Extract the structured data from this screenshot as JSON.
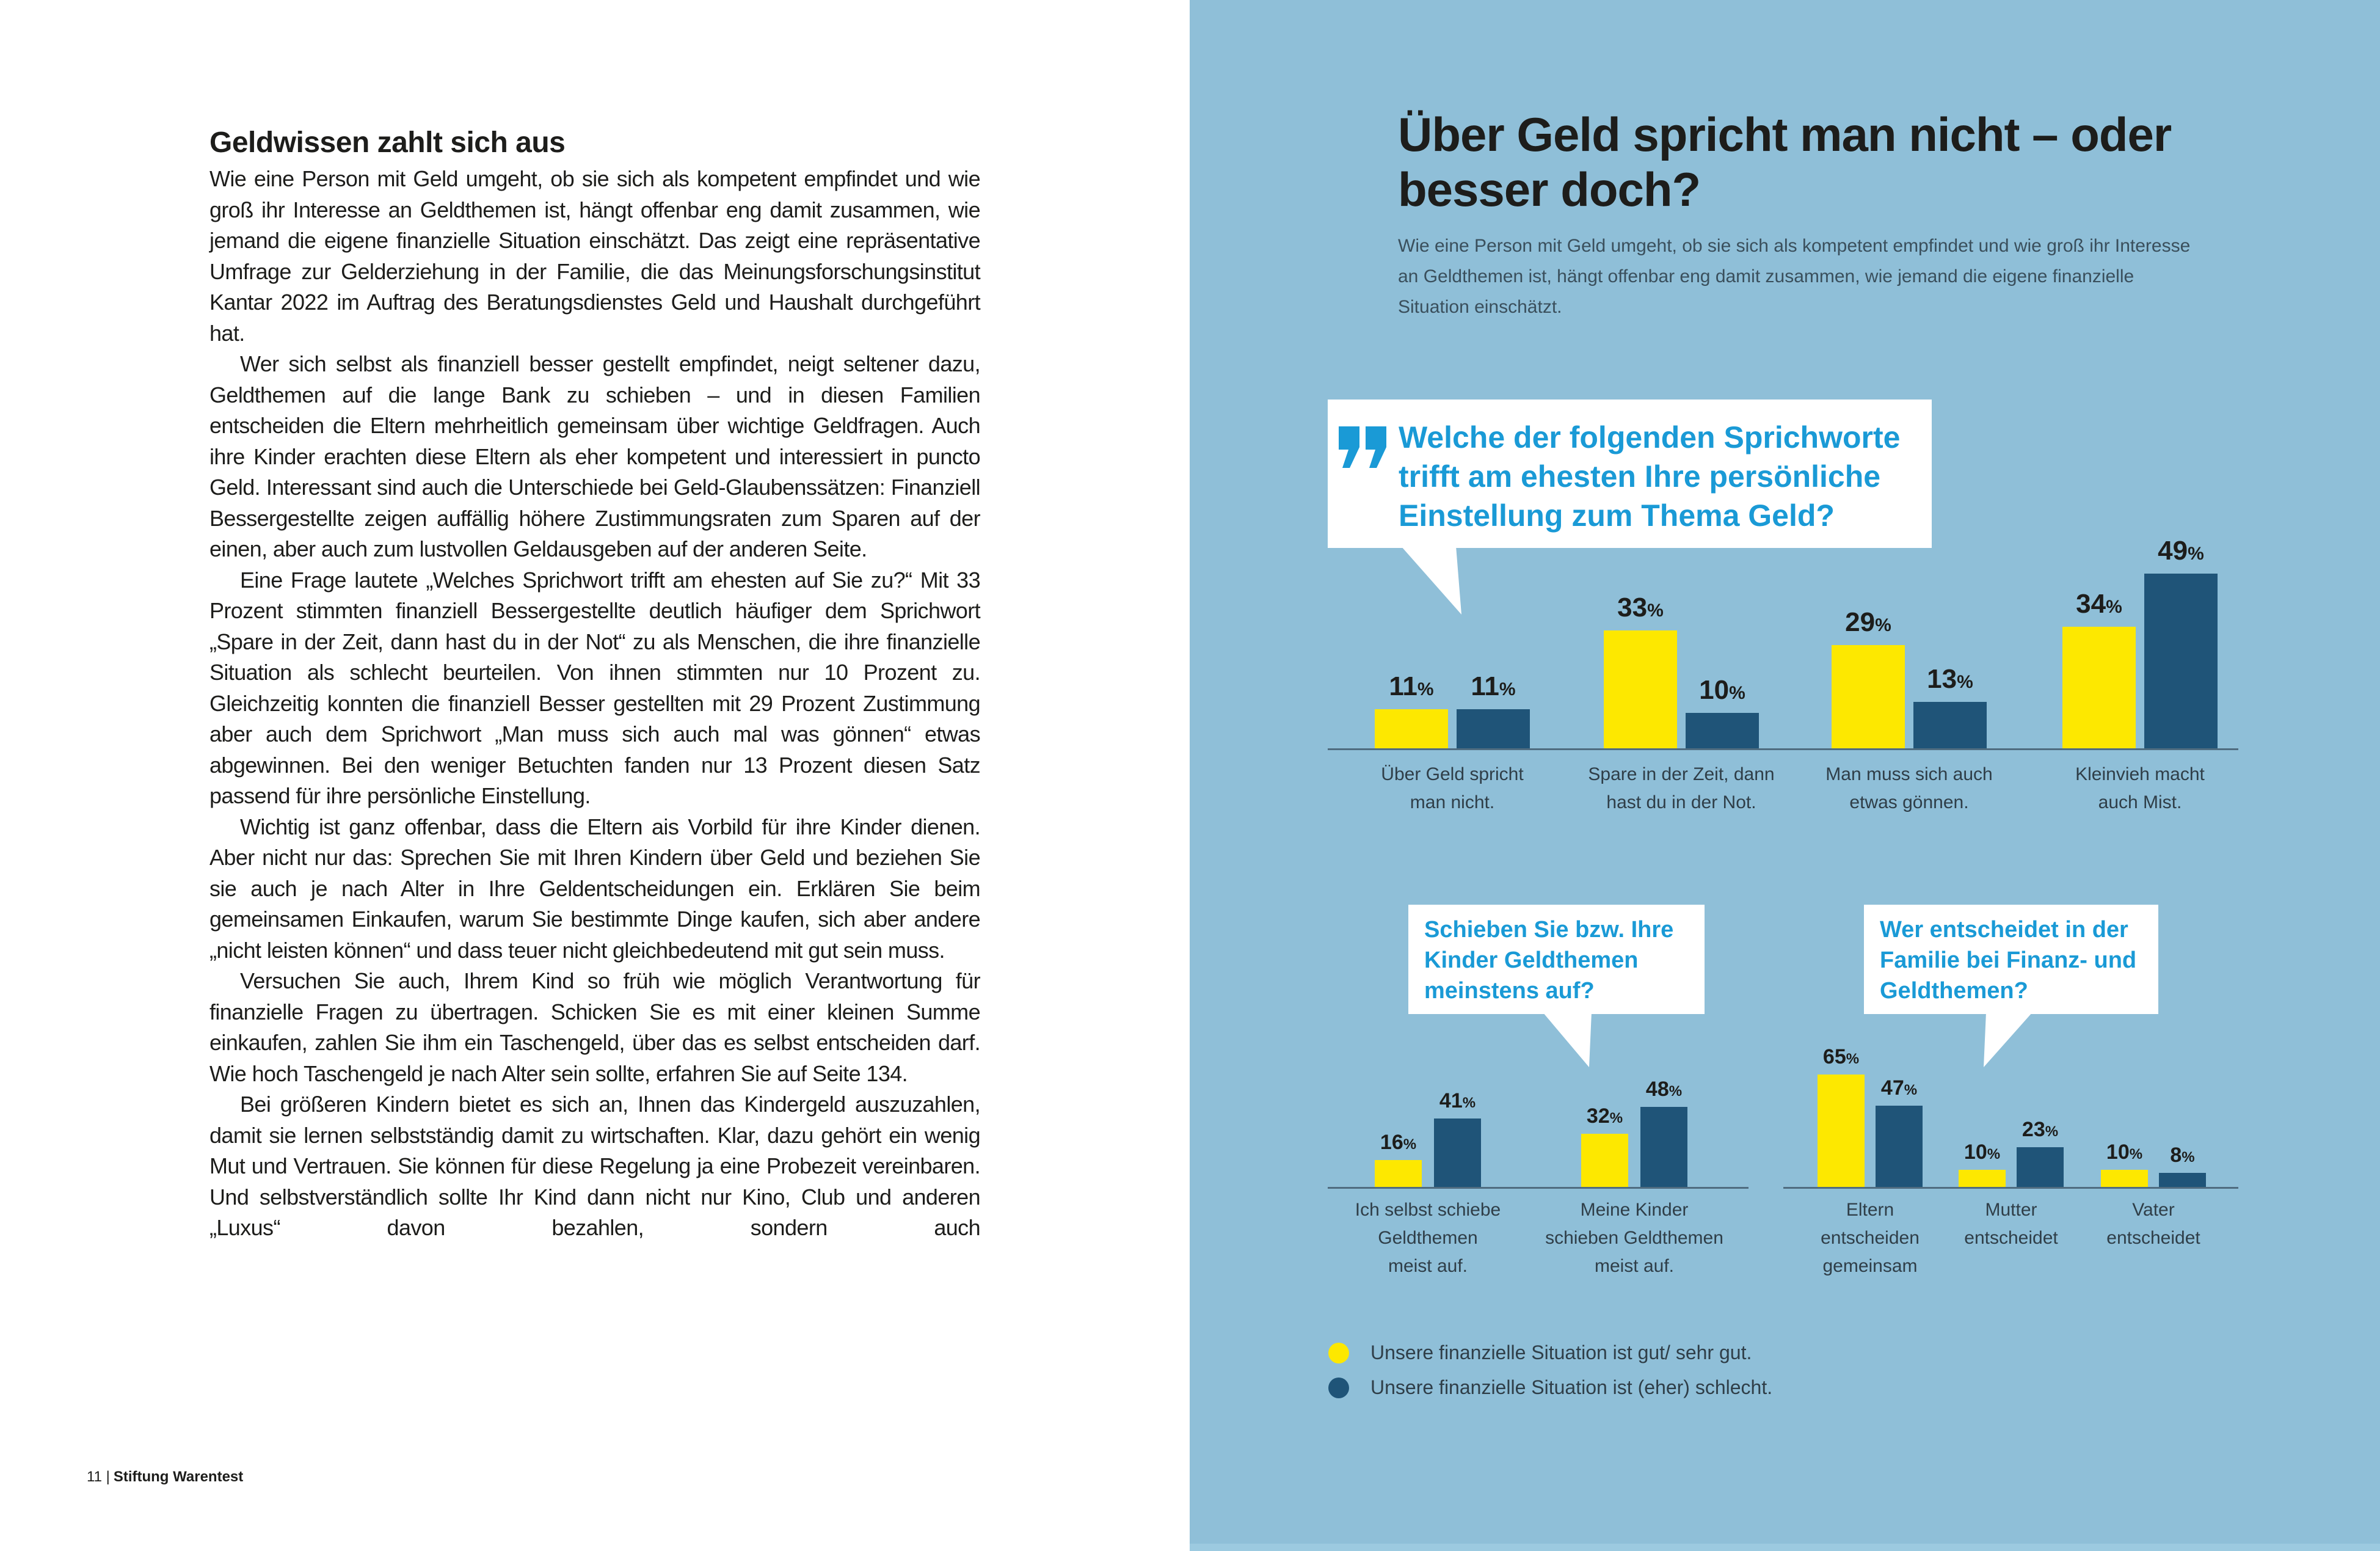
{
  "left": {
    "heading": "Geldwissen zahlt sich aus",
    "paragraphs": [
      "Wie eine Person mit Geld umgeht, ob sie sich als kompetent empfindet und wie groß ihr Interesse an Geldthemen ist, hängt offenbar eng damit zusammen, wie jemand die eigene finanzielle Situation einschätzt. Das zeigt eine repräsentative Umfrage zur Gelderziehung in der Familie, die das Meinungsforschungsinstitut Kantar 2022 im Auftrag des Beratungsdienstes Geld und Haushalt durchgeführt hat.",
      "Wer sich selbst als finanziell besser gestellt empfindet, neigt seltener dazu, Geldthemen auf die lange Bank zu schieben – und in diesen Familien entscheiden die Eltern mehrheitlich gemeinsam über wichtige Geldfragen. Auch ihre Kinder erachten diese Eltern als eher kompetent und interessiert in puncto Geld. Interessant sind auch die Unterschiede bei Geld-Glaubenssätzen: Finanziell Bessergestellte zeigen auffällig höhere Zustimmungsraten zum Sparen auf der einen, aber auch zum lustvollen Geldausgeben auf der anderen Seite.",
      "Eine Frage lautete „Welches Sprichwort trifft am ehesten auf Sie zu?“ Mit 33 Prozent stimmten finanziell Bessergestellte deutlich häufiger dem Sprichwort „Spare in der Zeit, dann hast du in der Not“ zu als Menschen, die ihre finanzielle Situation als schlecht beurteilen. Von ihnen stimmten nur 10 Prozent zu. Gleichzeitig konnten die finanziell Besser gestellten mit 29 Prozent Zustimmung aber auch dem Sprichwort „Man muss sich auch mal was gönnen“ etwas abgewinnen. Bei den weniger Betuchten fanden nur 13 Prozent diesen Satz passend für ihre persönliche Einstellung.",
      "Wichtig ist ganz offenbar, dass die Eltern ais Vorbild für ihre Kinder dienen. Aber nicht nur das: Sprechen Sie mit Ihren Kindern über Geld und beziehen Sie sie auch je nach Alter in Ihre Geldentscheidungen ein. Erklären Sie beim gemeinsamen Einkaufen, warum Sie bestimmte Dinge kaufen, sich aber andere „nicht leisten können“ und dass teuer nicht gleichbedeutend mit gut sein muss.",
      "Versuchen Sie auch, Ihrem Kind so früh wie möglich Verantwortung für finanzielle Fragen zu übertragen. Schicken Sie es mit einer kleinen Summe einkaufen, zahlen Sie ihm ein Taschengeld, über das es selbst entscheiden darf. Wie hoch Taschengeld je nach Alter sein sollte, erfahren Sie auf Seite 134.",
      "Bei größeren Kindern bietet es sich an, Ihnen das Kindergeld auszuzahlen, damit sie lernen selbstständig damit zu wirtschaften. Klar, dazu gehört ein wenig Mut und Vertrauen. Sie können für diese Regelung ja eine Probezeit vereinbaren. Und selbstverständlich sollte Ihr Kind dann nicht nur Kino, Club und anderen „Luxus“ davon bezahlen, sondern auch"
    ],
    "page_number": "11",
    "separator": "|",
    "publisher": "Stiftung Warentest"
  },
  "right": {
    "title": "Über Geld spricht man nicht – oder besser doch?",
    "subtitle": "Wie eine Person mit Geld umgeht, ob sie sich als kompetent empfindet und wie groß ihr Interesse an Geldthemen ist, hängt offenbar eng damit zusammen, wie jemand die eigene finanzielle Situation einschätzt."
  },
  "colors": {
    "good": "#fde800",
    "bad": "#1f5478",
    "accent": "#1a9ad6",
    "panel": "#8fbfd8"
  },
  "chart_data": [
    {
      "type": "bar",
      "title": "Welche der folgenden Sprichworte trifft am ehesten Ihre persönliche Einstellung zum Thema Geld?",
      "categories": [
        [
          "Über Geld spricht",
          "man nicht."
        ],
        [
          "Spare in der Zeit, dann",
          "hast du in der Not."
        ],
        [
          "Man muss sich auch",
          "etwas gönnen."
        ],
        [
          "Kleinvieh macht",
          "auch Mist."
        ]
      ],
      "series": [
        {
          "name": "Unsere finanzielle Situation ist gut/ sehr gut.",
          "values": [
            11,
            33,
            29,
            34
          ]
        },
        {
          "name": "Unsere finanzielle Situation ist (eher) schlecht.",
          "values": [
            11,
            10,
            13,
            49
          ]
        }
      ],
      "unit": "%"
    },
    {
      "type": "bar",
      "title": "Schieben Sie bzw. Ihre Kinder Geldthemen meinstens auf?",
      "categories": [
        [
          "Ich selbst schiebe",
          "Geldthemen",
          "meist auf."
        ],
        [
          "Meine Kinder",
          "schieben Geldthemen",
          "meist auf."
        ]
      ],
      "series": [
        {
          "name": "Unsere finanzielle Situation ist gut/ sehr gut.",
          "values": [
            16,
            32
          ]
        },
        {
          "name": "Unsere finanzielle Situation ist (eher) schlecht.",
          "values": [
            41,
            48
          ]
        }
      ],
      "unit": "%"
    },
    {
      "type": "bar",
      "title": "Wer entscheidet in der Familie bei Finanz- und Geldthemen?",
      "categories": [
        [
          "Eltern",
          "entscheiden",
          "gemeinsam"
        ],
        [
          "Mutter",
          "entscheidet"
        ],
        [
          "Vater",
          "entscheidet"
        ]
      ],
      "series": [
        {
          "name": "Unsere finanzielle Situation ist gut/ sehr gut.",
          "values": [
            65,
            10,
            10
          ]
        },
        {
          "name": "Unsere finanzielle Situation ist (eher) schlecht.",
          "values": [
            47,
            23,
            8
          ]
        }
      ],
      "unit": "%"
    }
  ],
  "legend": [
    "Unsere finanzielle Situation ist gut/ sehr gut.",
    "Unsere finanzielle Situation ist (eher) schlecht."
  ]
}
